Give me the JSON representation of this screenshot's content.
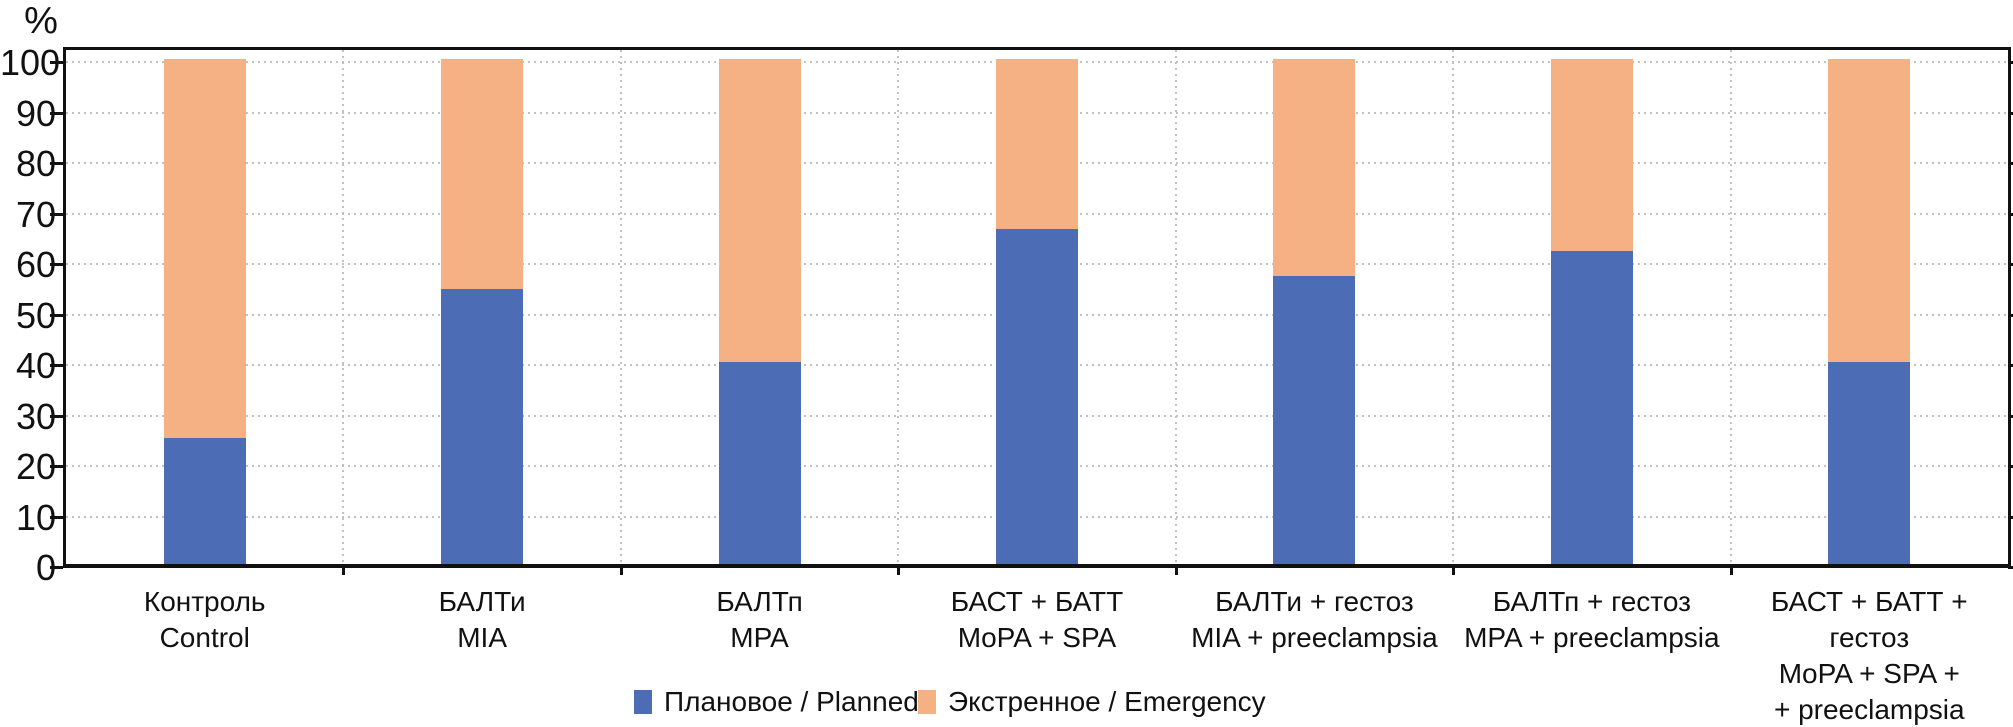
{
  "chart_data": {
    "type": "bar",
    "subtype": "stacked-100-percent",
    "title": "",
    "ylabel": "%",
    "xlabel": "",
    "ylim": [
      0,
      100
    ],
    "y_ticks": [
      0,
      10,
      20,
      30,
      40,
      50,
      60,
      70,
      80,
      90,
      100
    ],
    "grid": "dotted horizontal and vertical category separators",
    "legend_position": "bottom",
    "categories": [
      {
        "lines": [
          "Контроль",
          "Control"
        ]
      },
      {
        "lines": [
          "БАЛТи",
          "MIA"
        ]
      },
      {
        "lines": [
          "БАЛТп",
          "MPA"
        ]
      },
      {
        "lines": [
          "БАСТ + БАТТ",
          "MoPA + SPA"
        ]
      },
      {
        "lines": [
          "БАЛТи + гестоз",
          "MIA + preeclampsia"
        ]
      },
      {
        "lines": [
          "БАЛТп + гестоз",
          "MPA + preeclampsia"
        ]
      },
      {
        "lines": [
          "БАСТ + БАТТ + гестоз",
          "MoPA + SPA +",
          "+ preeclampsia"
        ]
      }
    ],
    "series": [
      {
        "name": "Плановое / Planned",
        "color": "#4C6DB5",
        "values": [
          25,
          54.5,
          40,
          66.4,
          57,
          62,
          40
        ]
      },
      {
        "name": "Экстренное / Emergency",
        "color": "#F5B183",
        "values": [
          75,
          45.5,
          60,
          33.6,
          43,
          38,
          60
        ]
      }
    ],
    "colors": {
      "planned": "#4C6DB5",
      "emergency": "#F5B183",
      "axis": "#111111",
      "gridline": "#c2c2c2"
    }
  }
}
